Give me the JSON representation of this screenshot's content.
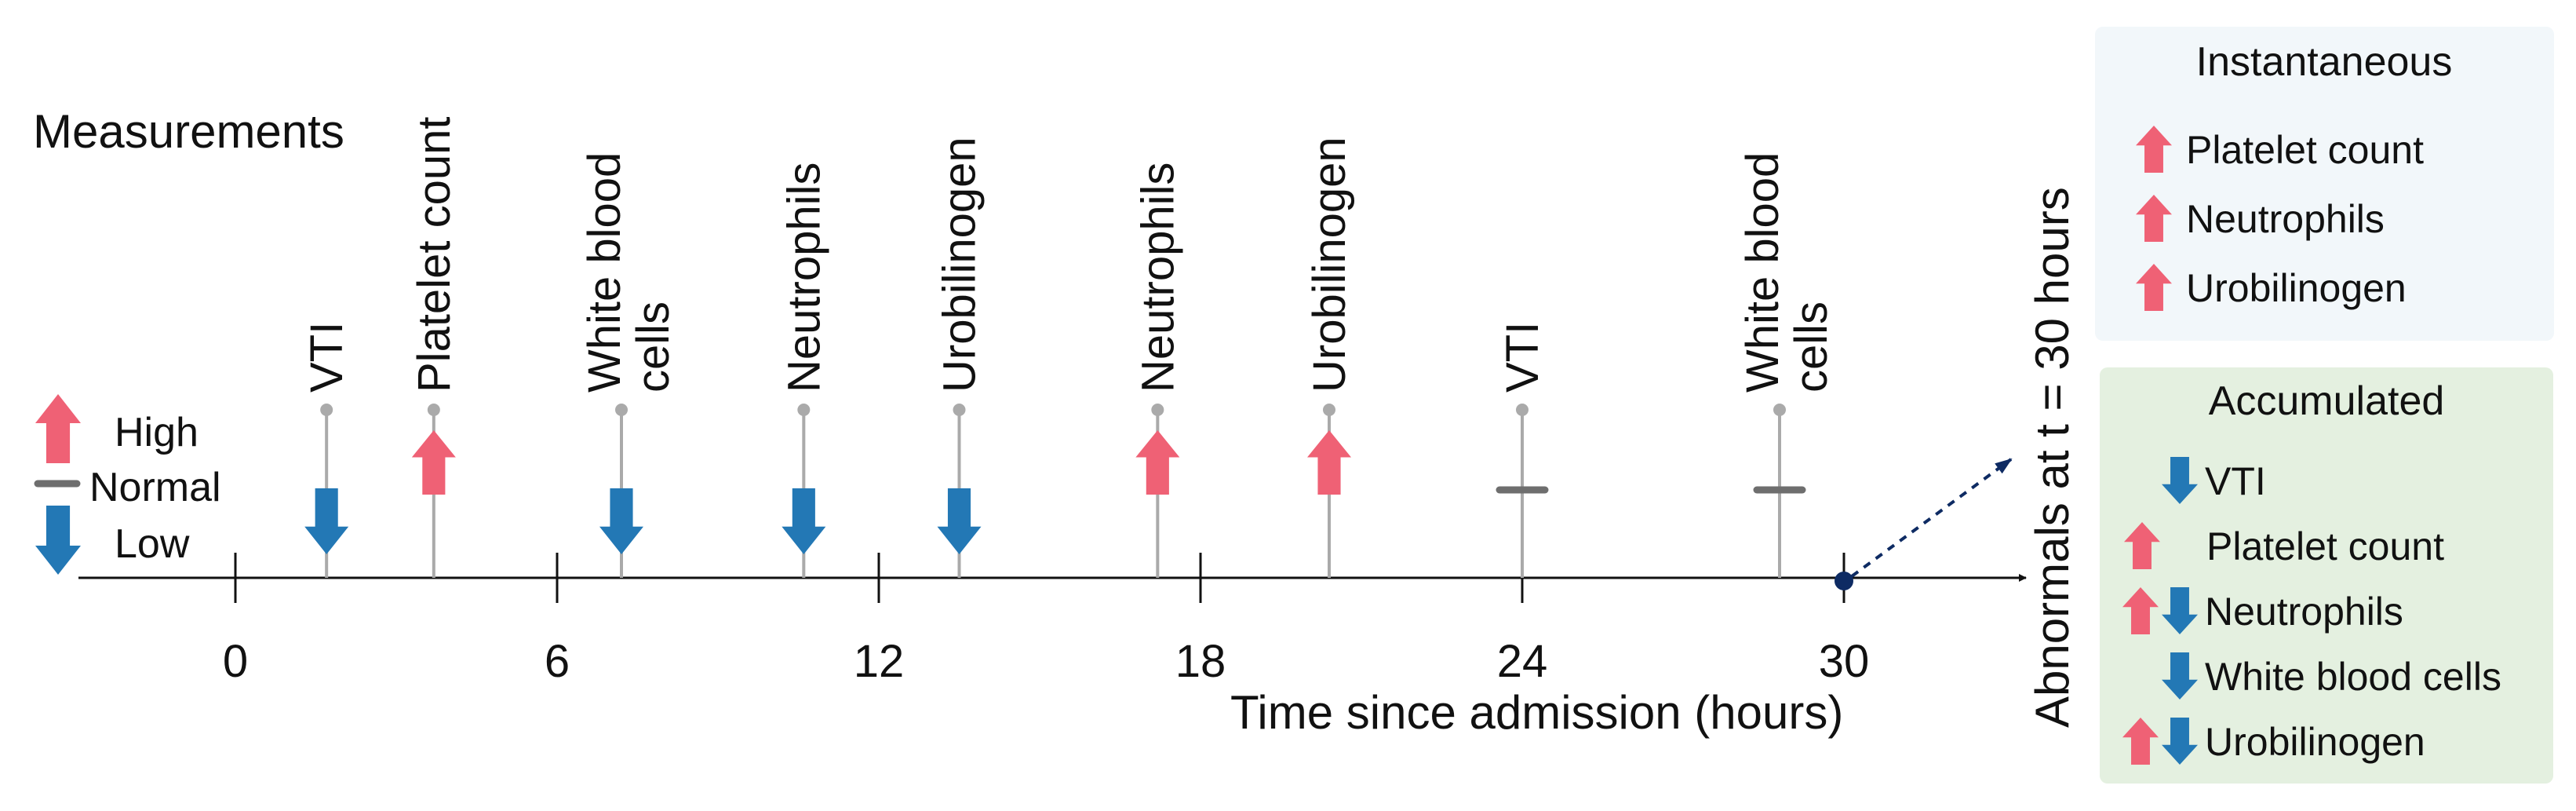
{
  "colors": {
    "high": "#EF6175",
    "low": "#2378B5",
    "normal": "#6E6E6E",
    "stem": "#AAAAAA",
    "axis": "#111111",
    "panel_instant_bg": "#F2F7FA",
    "panel_accum_bg": "#E4F0E0",
    "marker": "#0E2B63"
  },
  "headings": {
    "measurements": "Measurements",
    "x_axis_label": "Time since admission (hours)",
    "side_label": "Abnormals at t = 30 hours"
  },
  "legend": [
    {
      "status": "high",
      "label": "High"
    },
    {
      "status": "normal",
      "label": "Normal"
    },
    {
      "status": "low",
      "label": "Low"
    }
  ],
  "timeline": {
    "ticks": [
      0,
      6,
      12,
      18,
      24,
      30
    ],
    "tick_labels": [
      "0",
      "6",
      "12",
      "18",
      "24",
      "30"
    ],
    "x_range": [
      -3,
      33
    ],
    "current_time": 30
  },
  "measurements": [
    {
      "time": 1.7,
      "label_lines": [
        "VTI"
      ],
      "status": "low"
    },
    {
      "time": 3.7,
      "label_lines": [
        "Platelet count"
      ],
      "status": "high"
    },
    {
      "time": 7.2,
      "label_lines": [
        "White blood",
        "cells"
      ],
      "status": "low"
    },
    {
      "time": 10.6,
      "label_lines": [
        "Neutrophils"
      ],
      "status": "low"
    },
    {
      "time": 13.5,
      "label_lines": [
        "Urobilinogen"
      ],
      "status": "low"
    },
    {
      "time": 17.2,
      "label_lines": [
        "Neutrophils"
      ],
      "status": "high"
    },
    {
      "time": 20.4,
      "label_lines": [
        "Urobilinogen"
      ],
      "status": "high"
    },
    {
      "time": 24.0,
      "label_lines": [
        "VTI"
      ],
      "status": "normal"
    },
    {
      "time": 28.8,
      "label_lines": [
        "White blood",
        "cells"
      ],
      "status": "normal"
    }
  ],
  "instantaneous": {
    "title": "Instantaneous",
    "items": [
      {
        "label": "Platelet count",
        "statuses": [
          "high"
        ]
      },
      {
        "label": "Neutrophils",
        "statuses": [
          "high"
        ]
      },
      {
        "label": "Urobilinogen",
        "statuses": [
          "high"
        ]
      }
    ]
  },
  "accumulated": {
    "title": "Accumulated",
    "items": [
      {
        "label": "VTI",
        "statuses": [
          "low"
        ]
      },
      {
        "label": "Platelet count",
        "statuses": [
          "high"
        ]
      },
      {
        "label": "Neutrophils",
        "statuses": [
          "high",
          "low"
        ]
      },
      {
        "label": "White blood cells",
        "statuses": [
          "low"
        ]
      },
      {
        "label": "Urobilinogen",
        "statuses": [
          "high",
          "low"
        ]
      }
    ]
  }
}
